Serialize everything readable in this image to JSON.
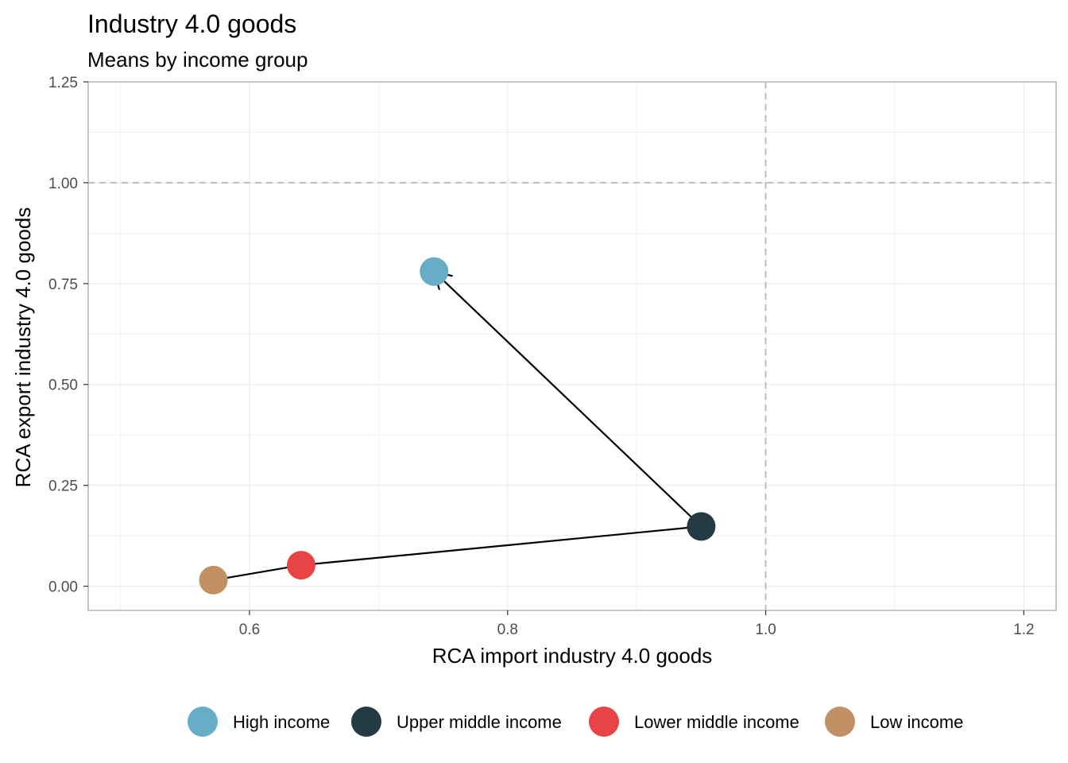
{
  "chart_data": {
    "type": "scatter",
    "title": "Industry 4.0 goods",
    "subtitle": "Means by income group",
    "xlabel": "RCA import industry 4.0 goods",
    "ylabel": "RCA export industry 4.0 goods",
    "xlim": [
      0.475,
      1.225
    ],
    "ylim": [
      -0.06,
      1.25
    ],
    "x_ticks": [
      0.6,
      0.8,
      1.0,
      1.2
    ],
    "x_tick_labels": [
      "0.6",
      "0.8",
      "1.0",
      "1.2"
    ],
    "y_ticks": [
      0.0,
      0.25,
      0.5,
      0.75,
      1.0,
      1.25
    ],
    "y_tick_labels": [
      "0.00",
      "0.25",
      "0.50",
      "0.75",
      "1.00",
      "1.25"
    ],
    "grid": true,
    "reference_lines": [
      {
        "axis": "x",
        "value": 1.0,
        "style": "dashed"
      },
      {
        "axis": "y",
        "value": 1.0,
        "style": "dashed"
      }
    ],
    "legend_position": "bottom",
    "series": [
      {
        "name": "High income",
        "color": "#67adc7",
        "x": 0.743,
        "y": 0.78
      },
      {
        "name": "Upper middle income",
        "color": "#243a44",
        "x": 0.95,
        "y": 0.148
      },
      {
        "name": "Lower middle income",
        "color": "#e84445",
        "x": 0.64,
        "y": 0.052
      },
      {
        "name": "Low income",
        "color": "#c19063",
        "x": 0.572,
        "y": 0.015
      }
    ],
    "path_order": [
      "Low income",
      "Lower middle income",
      "Upper middle income",
      "High income"
    ],
    "path_end": "arrow"
  }
}
